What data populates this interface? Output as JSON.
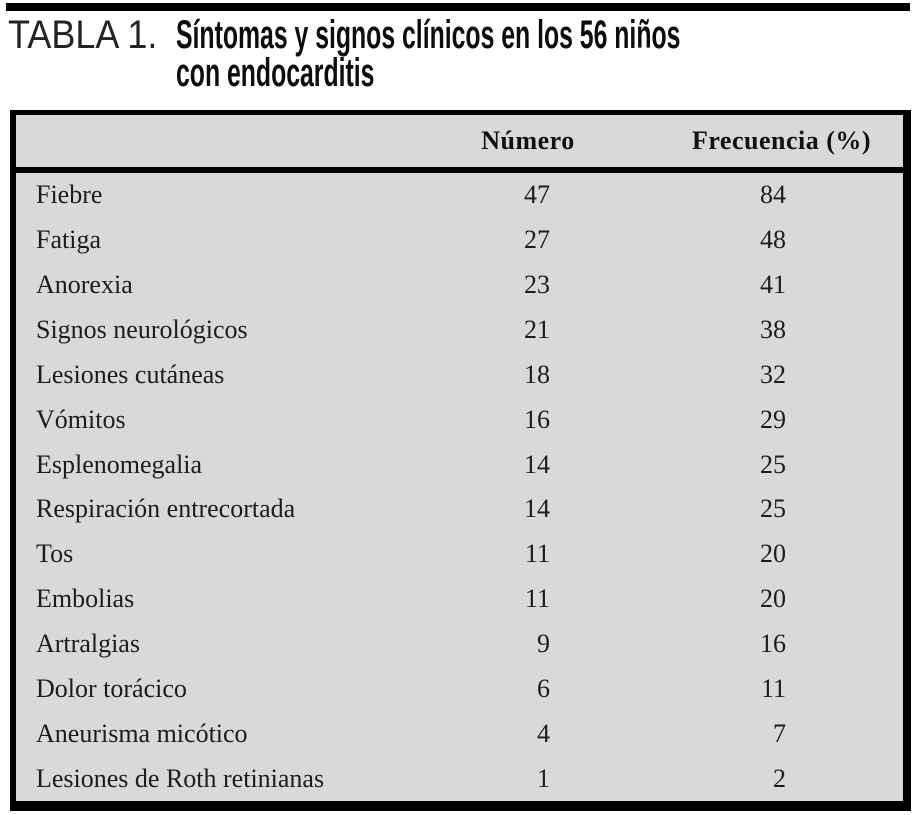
{
  "caption": {
    "label": "TABLA 1.",
    "title_line1": "Síntomas y signos clínicos en los 56 niños",
    "title_line2": "con endocarditis"
  },
  "table": {
    "headers": {
      "label": "",
      "numero": "Número",
      "frecuencia": "Frecuencia (%)"
    },
    "rows": [
      {
        "label": "Fiebre",
        "numero": 47,
        "frecuencia": 84
      },
      {
        "label": "Fatiga",
        "numero": 27,
        "frecuencia": 48
      },
      {
        "label": "Anorexia",
        "numero": 23,
        "frecuencia": 41
      },
      {
        "label": "Signos neurológicos",
        "numero": 21,
        "frecuencia": 38
      },
      {
        "label": "Lesiones cutáneas",
        "numero": 18,
        "frecuencia": 32
      },
      {
        "label": "Vómitos",
        "numero": 16,
        "frecuencia": 29
      },
      {
        "label": "Esplenomegalia",
        "numero": 14,
        "frecuencia": 25
      },
      {
        "label": "Respiración entrecortada",
        "numero": 14,
        "frecuencia": 25
      },
      {
        "label": "Tos",
        "numero": 11,
        "frecuencia": 20
      },
      {
        "label": "Embolias",
        "numero": 11,
        "frecuencia": 20
      },
      {
        "label": "Artralgias",
        "numero": 9,
        "frecuencia": 16
      },
      {
        "label": "Dolor torácico",
        "numero": 6,
        "frecuencia": 11
      },
      {
        "label": "Aneurisma micótico",
        "numero": 4,
        "frecuencia": 7
      },
      {
        "label": "Lesiones de Roth retinianas",
        "numero": 1,
        "frecuencia": 2
      }
    ]
  },
  "colors": {
    "table_background": "#d9d9d9",
    "border": "#000000",
    "text": "#1c1c1c"
  }
}
